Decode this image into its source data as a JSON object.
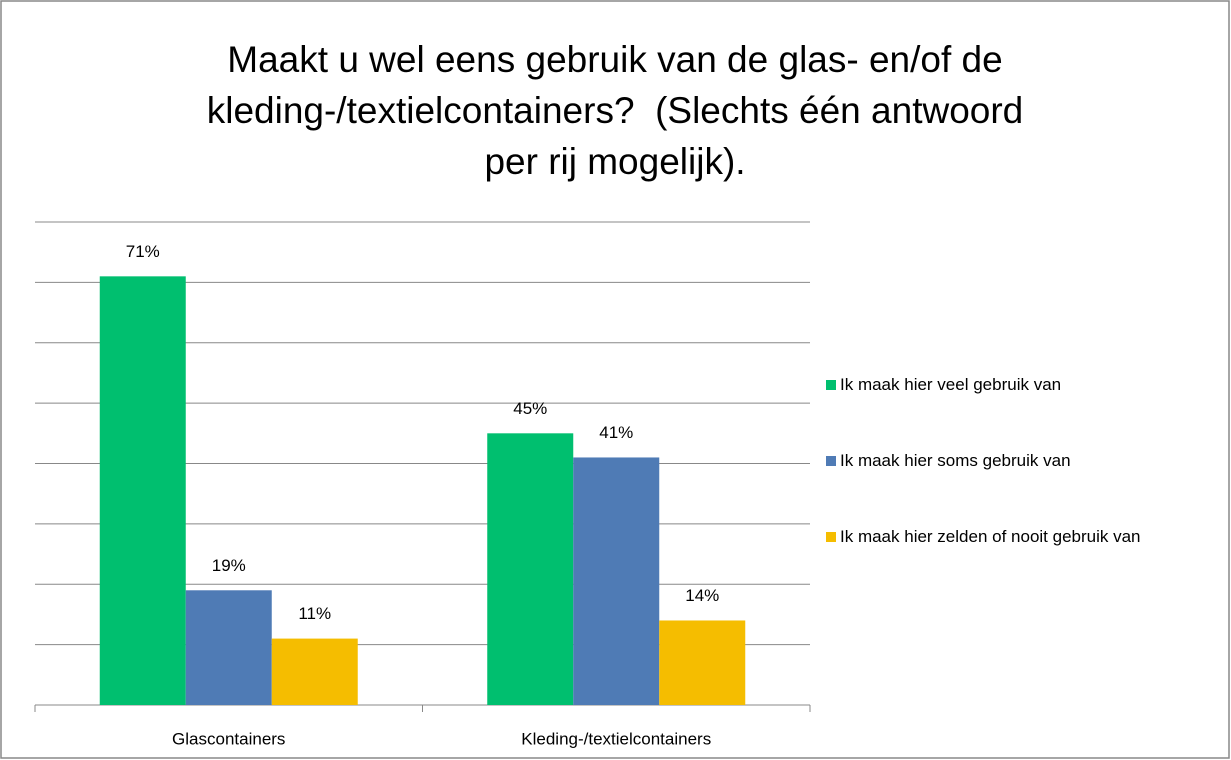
{
  "chart_data": {
    "type": "bar",
    "title": [
      "Maakt u wel eens gebruik van de glas- en/of de",
      "kleding-/textielcontainers?  (Slechts één antwoord",
      "per rij mogelijk)."
    ],
    "categories": [
      "Glascontainers",
      "Kleding-/textielcontainers"
    ],
    "series": [
      {
        "name": "Ik maak hier veel gebruik van",
        "color": "#00bf6f",
        "values": [
          71,
          45
        ],
        "value_labels": [
          "71%",
          "45%"
        ]
      },
      {
        "name": "Ik maak hier soms gebruik van",
        "color": "#4f7bb5",
        "values": [
          19,
          41
        ],
        "value_labels": [
          "19%",
          "41%"
        ]
      },
      {
        "name": "Ik maak hier zelden of nooit gebruik van",
        "color": "#f5bd00",
        "values": [
          11,
          14
        ],
        "value_labels": [
          "11%",
          "14%"
        ]
      }
    ],
    "ylim": [
      0,
      80
    ],
    "yticks": [
      0,
      10,
      20,
      30,
      40,
      50,
      60,
      70,
      80
    ],
    "grid": true,
    "legend": "right"
  }
}
